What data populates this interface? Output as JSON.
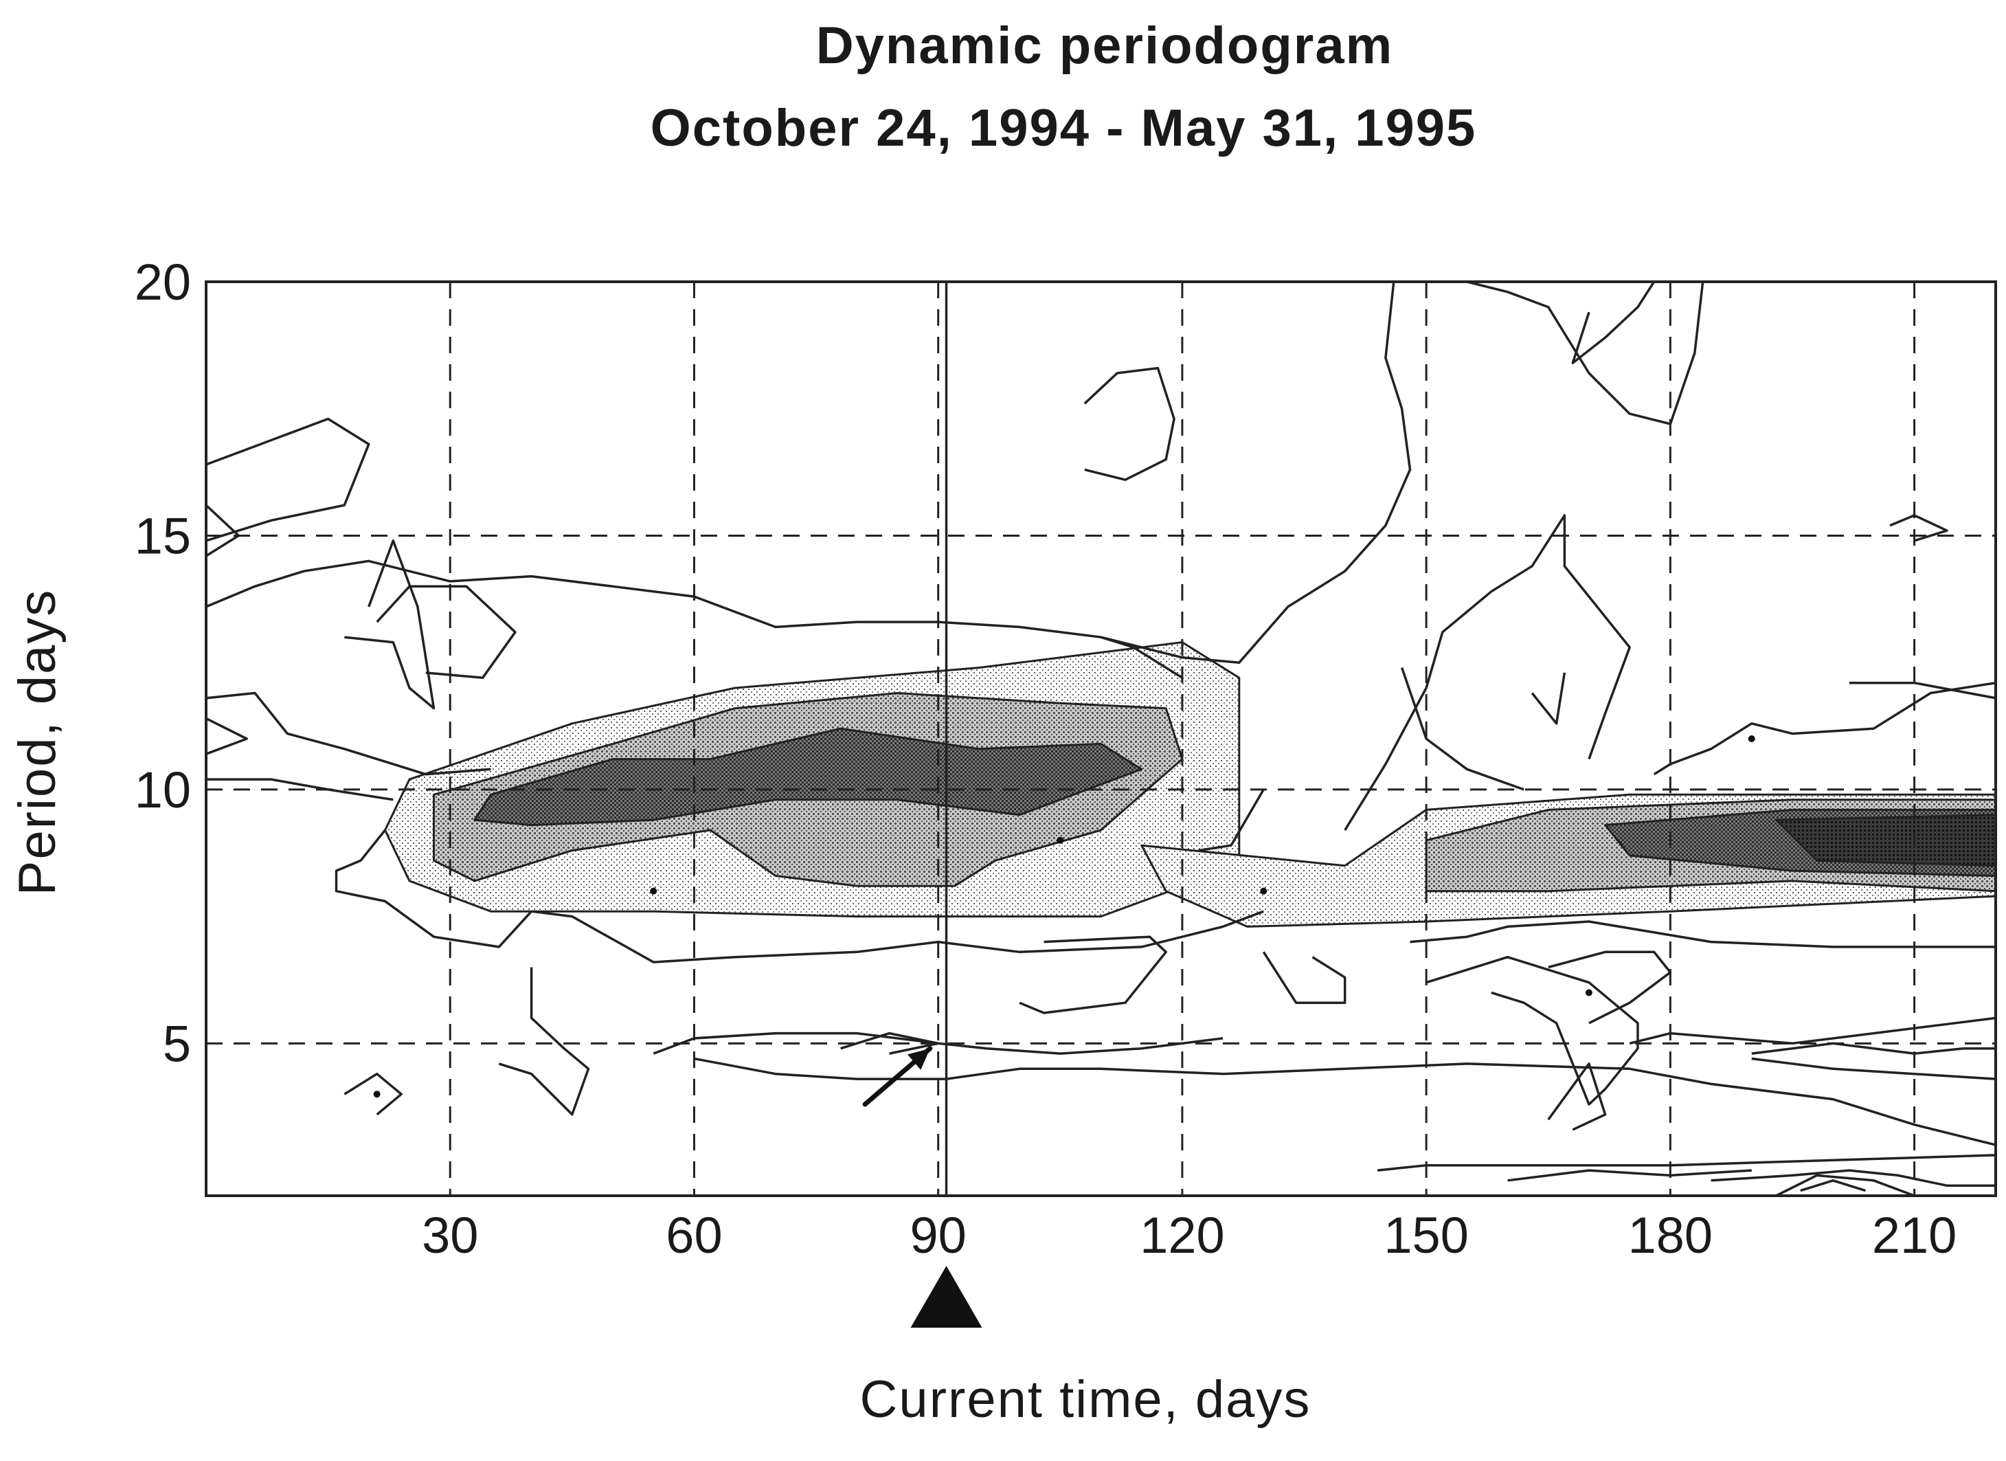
{
  "chart_data": {
    "type": "heatmap",
    "title": "Dynamic periodogram",
    "subtitle": "October 24, 1994 - May 31, 1995",
    "xlabel": "Current time, days",
    "ylabel": "Period, days",
    "xlim": [
      0,
      220
    ],
    "ylim": [
      2,
      20
    ],
    "x_ticks": [
      30,
      60,
      90,
      120,
      150,
      180,
      210
    ],
    "y_ticks": [
      5,
      10,
      15,
      20
    ],
    "grid": true,
    "marker": {
      "type": "triangle",
      "x": 91
    },
    "reference_line_x": 91,
    "arrow": {
      "from": [
        81,
        3.8
      ],
      "to": [
        89,
        4.9
      ]
    },
    "dots": [
      [
        21,
        4
      ],
      [
        55,
        8
      ],
      [
        105,
        9
      ],
      [
        190,
        11
      ],
      [
        170,
        6
      ],
      [
        130,
        8
      ]
    ],
    "bands": [
      {
        "level": 1,
        "points": [
          [
            25,
            10.2
          ],
          [
            45,
            11.3
          ],
          [
            65,
            12.0
          ],
          [
            95,
            12.4
          ],
          [
            120,
            12.9
          ],
          [
            127,
            12.2
          ],
          [
            127,
            8.5
          ],
          [
            110,
            7.5
          ],
          [
            80,
            7.5
          ],
          [
            55,
            7.6
          ],
          [
            35,
            7.6
          ],
          [
            25,
            8.2
          ],
          [
            22,
            9.2
          ]
        ]
      },
      {
        "level": 1,
        "points": [
          [
            115,
            8.9
          ],
          [
            140,
            8.5
          ],
          [
            150,
            9.6
          ],
          [
            175,
            9.9
          ],
          [
            220,
            9.9
          ],
          [
            220,
            7.9
          ],
          [
            180,
            7.6
          ],
          [
            150,
            7.4
          ],
          [
            128,
            7.3
          ],
          [
            118,
            8.0
          ]
        ]
      },
      {
        "level": 2,
        "points": [
          [
            28,
            9.9
          ],
          [
            50,
            10.9
          ],
          [
            65,
            11.6
          ],
          [
            85,
            11.9
          ],
          [
            105,
            11.7
          ],
          [
            118,
            11.6
          ],
          [
            120,
            10.6
          ],
          [
            110,
            9.2
          ],
          [
            97,
            8.6
          ],
          [
            92,
            8.1
          ],
          [
            80,
            8.1
          ],
          [
            70,
            8.3
          ],
          [
            62,
            9.2
          ],
          [
            45,
            8.8
          ],
          [
            33,
            8.2
          ],
          [
            28,
            8.6
          ]
        ]
      },
      {
        "level": 2,
        "points": [
          [
            150,
            9.0
          ],
          [
            165,
            9.6
          ],
          [
            195,
            9.8
          ],
          [
            220,
            9.8
          ],
          [
            220,
            8.0
          ],
          [
            195,
            8.2
          ],
          [
            165,
            8.0
          ],
          [
            150,
            8.0
          ]
        ]
      },
      {
        "level": 3,
        "points": [
          [
            35,
            9.9
          ],
          [
            50,
            10.6
          ],
          [
            62,
            10.6
          ],
          [
            78,
            11.2
          ],
          [
            95,
            10.8
          ],
          [
            110,
            10.9
          ],
          [
            115,
            10.4
          ],
          [
            100,
            9.5
          ],
          [
            85,
            9.8
          ],
          [
            70,
            9.8
          ],
          [
            55,
            9.4
          ],
          [
            40,
            9.3
          ],
          [
            33,
            9.4
          ]
        ]
      },
      {
        "level": 3,
        "points": [
          [
            172,
            9.3
          ],
          [
            195,
            9.6
          ],
          [
            220,
            9.6
          ],
          [
            220,
            8.3
          ],
          [
            195,
            8.4
          ],
          [
            175,
            8.7
          ]
        ]
      },
      {
        "level": 4,
        "points": [
          [
            193,
            9.4
          ],
          [
            220,
            9.5
          ],
          [
            220,
            8.5
          ],
          [
            198,
            8.6
          ]
        ]
      }
    ],
    "contours": [
      [
        [
          0,
          16.4
        ],
        [
          10,
          17.0
        ],
        [
          15,
          17.3
        ],
        [
          20,
          16.8
        ],
        [
          17,
          15.6
        ],
        [
          8,
          15.3
        ],
        [
          0,
          14.9
        ]
      ],
      [
        [
          0,
          15.6
        ],
        [
          4,
          15.0
        ],
        [
          0,
          14.6
        ]
      ],
      [
        [
          0,
          13.6
        ],
        [
          6,
          14.0
        ],
        [
          12,
          14.3
        ],
        [
          20,
          14.5
        ],
        [
          30,
          14.1
        ],
        [
          40,
          14.2
        ],
        [
          50,
          14.0
        ],
        [
          60,
          13.8
        ],
        [
          70,
          13.2
        ],
        [
          80,
          13.3
        ],
        [
          90,
          13.3
        ],
        [
          100,
          13.2
        ],
        [
          110,
          13.0
        ],
        [
          120,
          12.6
        ],
        [
          127,
          12.5
        ],
        [
          133,
          13.6
        ],
        [
          140,
          14.3
        ],
        [
          145,
          15.2
        ],
        [
          148,
          16.3
        ],
        [
          147,
          17.5
        ],
        [
          145,
          18.5
        ],
        [
          146,
          20
        ]
      ],
      [
        [
          17,
          13.0
        ],
        [
          23,
          12.9
        ],
        [
          25,
          12.0
        ],
        [
          28,
          11.6
        ],
        [
          26,
          13.6
        ],
        [
          23,
          14.9
        ],
        [
          20,
          13.6
        ]
      ],
      [
        [
          21,
          13.3
        ],
        [
          25,
          14.0
        ],
        [
          32,
          14.0
        ],
        [
          38,
          13.1
        ],
        [
          34,
          12.2
        ],
        [
          27,
          12.3
        ]
      ],
      [
        [
          0,
          11.8
        ],
        [
          6,
          11.9
        ],
        [
          10,
          11.1
        ],
        [
          17,
          10.8
        ],
        [
          27,
          10.3
        ],
        [
          35,
          10.4
        ]
      ],
      [
        [
          0,
          11.4
        ],
        [
          5,
          11.0
        ],
        [
          0,
          10.7
        ]
      ],
      [
        [
          0,
          10.2
        ],
        [
          8,
          10.2
        ],
        [
          15,
          10.0
        ],
        [
          23,
          9.8
        ]
      ],
      [
        [
          22,
          9.2
        ],
        [
          19,
          8.6
        ],
        [
          16,
          8.4
        ],
        [
          16,
          8.0
        ],
        [
          22,
          7.8
        ],
        [
          28,
          7.1
        ],
        [
          36,
          6.9
        ],
        [
          40,
          7.6
        ]
      ],
      [
        [
          40,
          7.6
        ],
        [
          45,
          7.5
        ],
        [
          55,
          6.6
        ],
        [
          65,
          6.7
        ],
        [
          80,
          6.8
        ],
        [
          90,
          7.0
        ],
        [
          100,
          6.8
        ],
        [
          115,
          6.9
        ],
        [
          125,
          7.3
        ],
        [
          130,
          7.6
        ]
      ],
      [
        [
          148,
          7.0
        ],
        [
          155,
          7.1
        ],
        [
          160,
          7.3
        ],
        [
          170,
          7.4
        ],
        [
          185,
          7.0
        ],
        [
          200,
          6.9
        ],
        [
          220,
          6.9
        ]
      ],
      [
        [
          110,
          13.0
        ],
        [
          114,
          12.8
        ],
        [
          120,
          12.2
        ]
      ],
      [
        [
          130,
          10.0
        ],
        [
          126,
          8.9
        ],
        [
          122,
          8.8
        ]
      ],
      [
        [
          140,
          9.2
        ],
        [
          145,
          10.5
        ],
        [
          150,
          12.0
        ],
        [
          152,
          13.1
        ],
        [
          158,
          13.9
        ],
        [
          163,
          14.4
        ],
        [
          167,
          15.4
        ],
        [
          167,
          14.4
        ],
        [
          175,
          12.8
        ],
        [
          172,
          11.5
        ],
        [
          170,
          10.6
        ]
      ],
      [
        [
          147,
          12.4
        ],
        [
          150,
          11.0
        ],
        [
          155,
          10.4
        ],
        [
          162,
          10.0
        ]
      ],
      [
        [
          163,
          11.9
        ],
        [
          166,
          11.3
        ],
        [
          167,
          12.3
        ]
      ],
      [
        [
          178,
          10.3
        ],
        [
          180,
          10.5
        ],
        [
          185,
          10.8
        ],
        [
          190,
          11.3
        ],
        [
          195,
          11.1
        ],
        [
          205,
          11.2
        ],
        [
          212,
          11.9
        ],
        [
          220,
          12.1
        ]
      ],
      [
        [
          202,
          12.1
        ],
        [
          210,
          12.1
        ],
        [
          220,
          11.8
        ]
      ],
      [
        [
          108,
          17.6
        ],
        [
          112,
          18.2
        ],
        [
          117,
          18.3
        ],
        [
          119,
          17.3
        ],
        [
          118,
          16.5
        ],
        [
          113,
          16.1
        ],
        [
          108,
          16.3
        ]
      ],
      [
        [
          155,
          20
        ],
        [
          160,
          19.8
        ],
        [
          165,
          19.5
        ],
        [
          170,
          18.2
        ],
        [
          175,
          17.4
        ],
        [
          180,
          17.2
        ],
        [
          183,
          18.6
        ],
        [
          184,
          20
        ]
      ],
      [
        [
          172,
          20
        ],
        [
          178,
          20
        ],
        [
          176,
          19.5
        ],
        [
          172,
          18.9
        ],
        [
          168,
          18.4
        ],
        [
          170,
          19.4
        ]
      ],
      [
        [
          207,
          15.2
        ],
        [
          210,
          15.4
        ],
        [
          214,
          15.1
        ],
        [
          210,
          14.9
        ]
      ],
      [
        [
          40,
          6.5
        ],
        [
          40,
          5.5
        ],
        [
          44,
          4.9
        ],
        [
          47,
          4.5
        ],
        [
          45,
          3.6
        ],
        [
          40,
          4.4
        ],
        [
          36,
          4.6
        ]
      ],
      [
        [
          17,
          4.0
        ],
        [
          21,
          4.4
        ],
        [
          24,
          4.0
        ],
        [
          21,
          3.6
        ]
      ],
      [
        [
          55,
          4.8
        ],
        [
          60,
          5.1
        ],
        [
          70,
          5.2
        ],
        [
          80,
          5.2
        ],
        [
          90,
          5.0
        ],
        [
          96,
          4.9
        ],
        [
          105,
          4.8
        ],
        [
          115,
          4.9
        ],
        [
          125,
          5.1
        ]
      ],
      [
        [
          60,
          4.7
        ],
        [
          70,
          4.4
        ],
        [
          80,
          4.3
        ],
        [
          91,
          4.3
        ],
        [
          100,
          4.5
        ],
        [
          110,
          4.5
        ],
        [
          125,
          4.4
        ],
        [
          140,
          4.5
        ],
        [
          155,
          4.6
        ],
        [
          175,
          4.5
        ],
        [
          185,
          4.2
        ],
        [
          200,
          3.9
        ],
        [
          210,
          3.4
        ],
        [
          220,
          3.0
        ]
      ],
      [
        [
          78,
          4.9
        ],
        [
          84,
          5.2
        ],
        [
          90,
          5.0
        ],
        [
          84,
          4.8
        ]
      ],
      [
        [
          100,
          5.8
        ],
        [
          103,
          5.6
        ],
        [
          113,
          5.8
        ],
        [
          118,
          6.8
        ],
        [
          116,
          7.1
        ],
        [
          103,
          7.0
        ]
      ],
      [
        [
          130,
          6.8
        ],
        [
          134,
          5.8
        ],
        [
          140,
          5.8
        ],
        [
          140,
          6.3
        ],
        [
          136,
          6.7
        ]
      ],
      [
        [
          150,
          6.2
        ],
        [
          160,
          6.7
        ],
        [
          170,
          6.2
        ],
        [
          176,
          5.4
        ],
        [
          176,
          4.9
        ],
        [
          172,
          4.1
        ],
        [
          170,
          3.8
        ],
        [
          166,
          5.4
        ],
        [
          162,
          5.8
        ],
        [
          158,
          6.0
        ]
      ],
      [
        [
          165,
          6.5
        ],
        [
          172,
          6.8
        ],
        [
          178,
          6.8
        ],
        [
          180,
          6.4
        ],
        [
          175,
          5.8
        ],
        [
          170,
          5.4
        ]
      ],
      [
        [
          175,
          5.0
        ],
        [
          180,
          5.2
        ],
        [
          195,
          5.0
        ],
        [
          205,
          5.2
        ],
        [
          215,
          5.4
        ],
        [
          220,
          5.5
        ]
      ],
      [
        [
          190,
          4.8
        ],
        [
          200,
          5.0
        ],
        [
          210,
          4.8
        ],
        [
          216,
          4.9
        ],
        [
          220,
          4.9
        ]
      ],
      [
        [
          190,
          4.7
        ],
        [
          200,
          4.5
        ],
        [
          210,
          4.4
        ],
        [
          220,
          4.3
        ]
      ],
      [
        [
          165,
          3.5
        ],
        [
          170,
          4.6
        ],
        [
          172,
          3.6
        ],
        [
          168,
          3.3
        ]
      ],
      [
        [
          144,
          2.5
        ],
        [
          150,
          2.6
        ],
        [
          165,
          2.6
        ],
        [
          180,
          2.6
        ],
        [
          200,
          2.7
        ],
        [
          220,
          2.8
        ]
      ],
      [
        [
          160,
          2.3
        ],
        [
          170,
          2.5
        ],
        [
          180,
          2.4
        ],
        [
          190,
          2.5
        ]
      ],
      [
        [
          185,
          2.3
        ],
        [
          195,
          2.4
        ],
        [
          202,
          2.5
        ],
        [
          208,
          2.4
        ],
        [
          214,
          2.2
        ],
        [
          220,
          2.2
        ]
      ],
      [
        [
          193,
          2.0
        ],
        [
          198,
          2.4
        ],
        [
          205,
          2.3
        ],
        [
          210,
          2.0
        ]
      ],
      [
        [
          196,
          2.1
        ],
        [
          200,
          2.3
        ],
        [
          204,
          2.1
        ]
      ]
    ]
  }
}
